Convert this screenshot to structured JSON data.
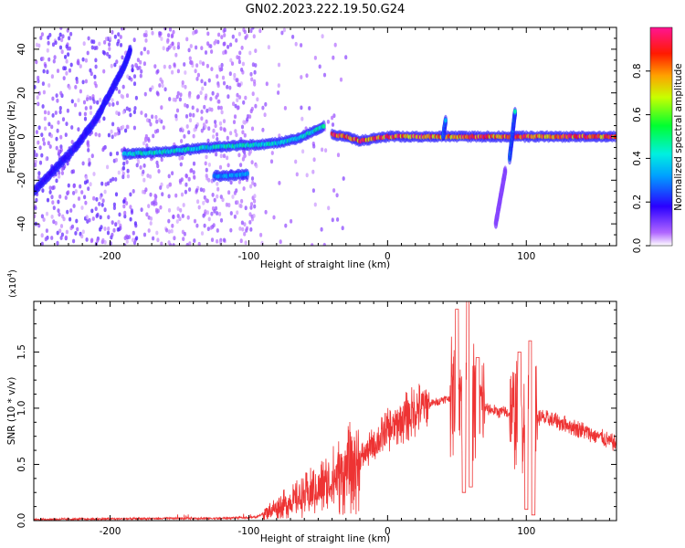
{
  "figure": {
    "title": "GN02.2023.222.19.50.G24"
  },
  "chart_data": [
    {
      "type": "heatmap",
      "xlabel": "Height of straight line (km)",
      "ylabel": "Frequency (Hz)",
      "xlim": [
        -255,
        165
      ],
      "ylim": [
        -50,
        50
      ],
      "x_ticks": [
        -200,
        -100,
        0,
        100
      ],
      "y_ticks": [
        -40,
        -20,
        0,
        20,
        40
      ],
      "colorbar": {
        "label": "Normalized spectral amplitude",
        "range": [
          0.0,
          1.0
        ],
        "ticks": [
          0.0,
          0.2,
          0.4,
          0.6,
          0.8
        ],
        "colormap": [
          "#ffffff",
          "#9a2bff",
          "#2a00ff",
          "#00e6ff",
          "#00ff40",
          "#ffff00",
          "#ff6600",
          "#ff0000",
          "#ff1493"
        ]
      },
      "traces": [
        {
          "x": [
            -255,
            -240,
            -225,
            -210,
            -200,
            -190,
            -185
          ],
          "y": [
            -25,
            -15,
            -5,
            8,
            20,
            32,
            40
          ],
          "level": 0.2
        },
        {
          "x": [
            -190,
            -160,
            -130,
            -100,
            -80,
            -65,
            -55,
            -45
          ],
          "y": [
            -8,
            -7,
            -5,
            -4,
            -3,
            -1,
            2,
            5
          ],
          "level": 0.45
        },
        {
          "x": [
            -125,
            -115,
            -100
          ],
          "y": [
            -18,
            -18,
            -17
          ],
          "level": 0.35
        },
        {
          "x": [
            -40,
            -30,
            -20,
            -10,
            0,
            20,
            40,
            60,
            80,
            100,
            120,
            140,
            165
          ],
          "y": [
            1,
            0,
            -2,
            -1,
            0,
            0,
            0,
            0,
            0,
            0,
            0,
            0,
            0
          ],
          "level": 0.9
        },
        {
          "x": [
            40,
            42
          ],
          "y": [
            0,
            8
          ],
          "level": 0.4
        },
        {
          "x": [
            88,
            92
          ],
          "y": [
            -10,
            12
          ],
          "level": 0.45
        },
        {
          "x": [
            78,
            85
          ],
          "y": [
            -40,
            -15
          ],
          "level": 0.1
        }
      ]
    },
    {
      "type": "line",
      "xlabel": "Height of straight line (km)",
      "ylabel": "SNR (10 * v/v)",
      "y_exponent_label": "(x10",
      "y_exponent_power": "4",
      "y_exponent_close": ")",
      "xlim": [
        -255,
        165
      ],
      "ylim": [
        0,
        1.95
      ],
      "x_ticks": [
        -200,
        -100,
        0,
        100
      ],
      "y_ticks": [
        0.0,
        0.5,
        1.0,
        1.5
      ],
      "color": "#ee3333",
      "envelope": {
        "x": [
          -255,
          -150,
          -120,
          -95,
          -80,
          -60,
          -40,
          -20,
          0,
          20,
          40,
          50,
          60,
          70,
          80,
          90,
          100,
          110,
          130,
          150,
          165
        ],
        "y": [
          0.01,
          0.02,
          0.02,
          0.03,
          0.12,
          0.22,
          0.35,
          0.55,
          0.8,
          0.98,
          1.08,
          1.1,
          1.08,
          1.0,
          0.97,
          0.95,
          0.9,
          0.92,
          0.85,
          0.76,
          0.68
        ]
      },
      "spikes": [
        {
          "x": 50,
          "y": 1.88
        },
        {
          "x": 55,
          "y": 0.25
        },
        {
          "x": 58,
          "y": 1.95
        },
        {
          "x": 60,
          "y": 0.3
        },
        {
          "x": 65,
          "y": 1.45
        },
        {
          "x": 95,
          "y": 1.5
        },
        {
          "x": 100,
          "y": 0.1
        },
        {
          "x": 103,
          "y": 1.6
        },
        {
          "x": 105,
          "y": 0.05
        }
      ]
    }
  ]
}
